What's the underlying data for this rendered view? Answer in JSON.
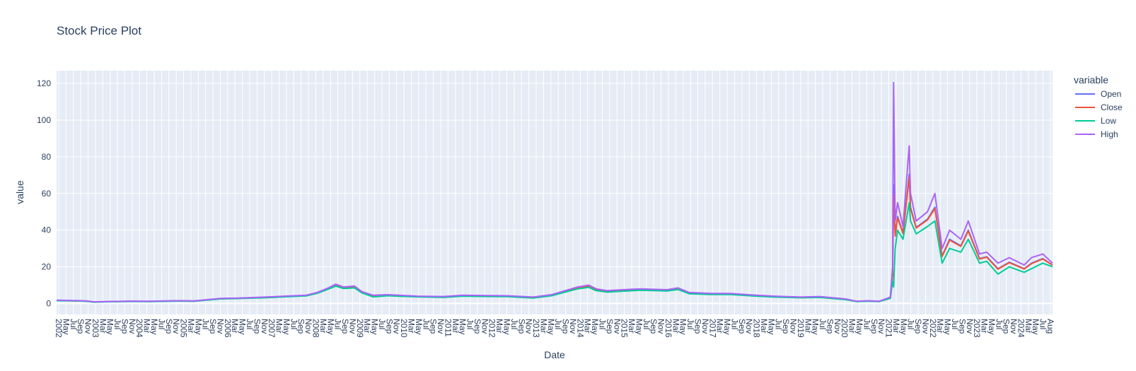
{
  "chart_data": {
    "type": "line",
    "title": "Stock Price Plot",
    "xlabel": "Date",
    "ylabel": "value",
    "x_range": [
      "2002-05-01",
      "2024-08-20"
    ],
    "ylim": [
      -6,
      127
    ],
    "y_ticks": [
      0,
      20,
      40,
      60,
      80,
      100,
      120
    ],
    "x_tick_labels": [
      "2002",
      "May",
      "Jul",
      "Sep",
      "Nov",
      "2003",
      "Mar",
      "May",
      "Jul",
      "Sep",
      "Nov",
      "2004",
      "Mar",
      "May",
      "Jul",
      "Sep",
      "Nov",
      "2005",
      "Mar",
      "May",
      "Jul",
      "Sep",
      "Nov",
      "2006",
      "Mar",
      "May",
      "Jul",
      "Sep",
      "Nov",
      "2007",
      "Mar",
      "May",
      "Jul",
      "Sep",
      "Nov",
      "2008",
      "Mar",
      "May",
      "Jul",
      "Sep",
      "Nov",
      "2009",
      "Mar",
      "May",
      "Jul",
      "Sep",
      "Nov",
      "2010",
      "Mar",
      "May",
      "Jul",
      "Sep",
      "Nov",
      "2011",
      "Mar",
      "May",
      "Jul",
      "Sep",
      "Nov",
      "2012",
      "Mar",
      "May",
      "Jul",
      "Sep",
      "Nov",
      "2013",
      "Mar",
      "May",
      "Jul",
      "Sep",
      "Nov",
      "2014",
      "Mar",
      "May",
      "Jul",
      "Sep",
      "Nov",
      "2015",
      "Mar",
      "May",
      "Jul",
      "Sep",
      "Nov",
      "2016",
      "Mar",
      "May",
      "Jul",
      "Sep",
      "Nov",
      "2017",
      "Mar",
      "May",
      "Jul",
      "Sep",
      "Nov",
      "2018",
      "Mar",
      "May",
      "Jul",
      "Sep",
      "Nov",
      "2019",
      "Mar",
      "May",
      "Jul",
      "Sep",
      "Nov",
      "2020",
      "Mar",
      "May",
      "Jul",
      "Sep",
      "Nov",
      "2021",
      "Mar",
      "May",
      "Jul",
      "Sep",
      "Nov",
      "2022",
      "Mar",
      "May",
      "Jul",
      "Sep",
      "Nov",
      "2023",
      "Mar",
      "May",
      "Jul",
      "Sep",
      "Nov",
      "2024",
      "Mar",
      "May",
      "Jul",
      "Aug"
    ],
    "grid": true,
    "legend": {
      "title": "variable",
      "placement": "right"
    },
    "background": "#e5ecf6",
    "series": [
      {
        "name": "Open",
        "color": "#636efa"
      },
      {
        "name": "Close",
        "color": "#ef553b"
      },
      {
        "name": "Low",
        "color": "#00cc96"
      },
      {
        "name": "High",
        "color": "#ab63fa"
      }
    ],
    "approx_trend": {
      "x": [
        "2002-05-01",
        "2002-09-01",
        "2003-01-01",
        "2003-03-01",
        "2003-06-01",
        "2004-01-01",
        "2004-06-01",
        "2005-01-01",
        "2005-06-01",
        "2006-01-01",
        "2006-06-01",
        "2007-01-01",
        "2007-06-01",
        "2007-12-01",
        "2008-03-01",
        "2008-06-01",
        "2008-08-01",
        "2008-10-01",
        "2009-01-01",
        "2009-03-01",
        "2009-06-01",
        "2009-10-01",
        "2010-01-01",
        "2010-06-01",
        "2011-01-01",
        "2011-06-01",
        "2012-01-01",
        "2012-06-01",
        "2013-01-01",
        "2013-06-01",
        "2014-01-01",
        "2014-04-01",
        "2014-06-01",
        "2014-09-01",
        "2015-01-01",
        "2015-06-01",
        "2016-01-01",
        "2016-04-01",
        "2016-07-01",
        "2017-01-01",
        "2017-06-01",
        "2018-01-01",
        "2018-06-01",
        "2019-01-01",
        "2019-06-01",
        "2020-01-01",
        "2020-04-01",
        "2020-07-01",
        "2020-10-01",
        "2021-01-01",
        "2021-01-20",
        "2021-01-28",
        "2021-02-10",
        "2021-03-01",
        "2021-04-15",
        "2021-06-05",
        "2021-06-15",
        "2021-08-01",
        "2021-11-01",
        "2022-01-01",
        "2022-03-01",
        "2022-05-01",
        "2022-08-01",
        "2022-10-01",
        "2023-01-01",
        "2023-03-01",
        "2023-06-01",
        "2023-09-01",
        "2024-01-01",
        "2024-03-01",
        "2024-06-01",
        "2024-08-20"
      ],
      "high": [
        1.8,
        1.6,
        1.4,
        0.9,
        1.0,
        1.3,
        1.2,
        1.5,
        1.4,
        2.8,
        3.0,
        3.5,
        4.0,
        4.5,
        6.0,
        8.5,
        10.5,
        9.0,
        9.5,
        6.5,
        4.5,
        4.8,
        4.5,
        4.0,
        3.8,
        4.5,
        4.3,
        4.2,
        3.5,
        4.8,
        9.0,
        10.0,
        8.0,
        7.0,
        7.5,
        8.0,
        7.5,
        8.5,
        6.0,
        5.5,
        5.5,
        4.5,
        4.0,
        3.5,
        3.8,
        2.5,
        1.2,
        1.5,
        1.2,
        3.5,
        20.0,
        120.5,
        45.0,
        55.0,
        42.0,
        86.0,
        60.0,
        45.0,
        50.0,
        60.0,
        30.0,
        40.0,
        35.0,
        45.0,
        27.0,
        28.0,
        22.0,
        25.0,
        21.0,
        25.0,
        27.0,
        22.0
      ],
      "low": [
        1.5,
        1.4,
        1.2,
        0.7,
        0.9,
        1.1,
        1.0,
        1.3,
        1.2,
        2.5,
        2.7,
        3.1,
        3.6,
        4.1,
        5.5,
        7.8,
        9.5,
        8.2,
        8.5,
        5.8,
        3.6,
        4.2,
        3.9,
        3.6,
        3.3,
        4.0,
        3.8,
        3.7,
        3.0,
        4.2,
        8.0,
        8.8,
        7.0,
        6.2,
        6.7,
        7.2,
        6.8,
        7.6,
        5.3,
        4.9,
        4.9,
        4.0,
        3.5,
        3.1,
        3.3,
        2.1,
        1.0,
        1.2,
        1.0,
        2.8,
        12.0,
        9.0,
        30.0,
        40.0,
        35.0,
        55.0,
        45.0,
        38.0,
        42.0,
        45.0,
        22.0,
        30.0,
        28.0,
        35.0,
        22.0,
        23.0,
        16.0,
        20.0,
        17.0,
        19.0,
        22.0,
        20.0
      ]
    }
  }
}
